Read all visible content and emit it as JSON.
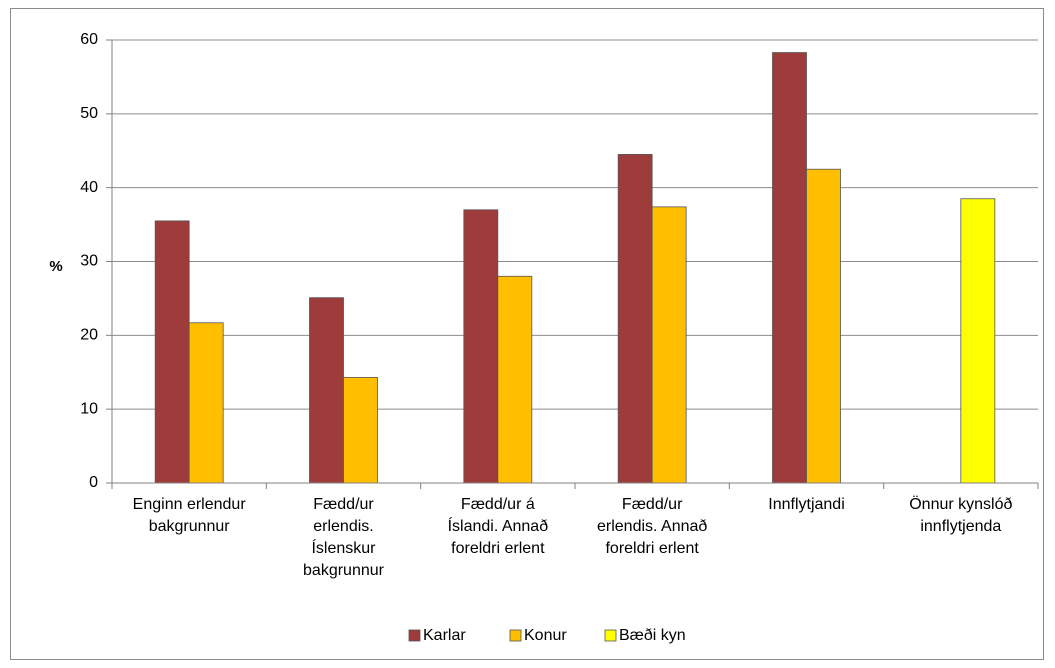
{
  "chart_data": {
    "type": "bar",
    "ylabel": "%",
    "ylim": [
      0,
      60
    ],
    "yticks": [
      "0",
      "10",
      "20",
      "30",
      "40",
      "50",
      "60"
    ],
    "grid": true,
    "legend_position": "bottom",
    "categories": [
      [
        "Enginn erlendur",
        "bakgrunnur"
      ],
      [
        "Fædd/ur",
        "erlendis.",
        "Íslenskur",
        "bakgrunnur"
      ],
      [
        "Fædd/ur á",
        "Íslandi. Annað",
        "foreldri erlent"
      ],
      [
        "Fædd/ur",
        "erlendis. Annað",
        "foreldri erlent"
      ],
      [
        "Innflytjandi"
      ],
      [
        "Önnur kynslóð",
        "innflytjenda"
      ]
    ],
    "series": [
      {
        "name": "Karlar",
        "color": "#9E3B3B",
        "values": [
          35.5,
          25.1,
          37.0,
          44.5,
          58.3,
          null
        ]
      },
      {
        "name": "Konur",
        "color": "#FFBF00",
        "values": [
          21.7,
          14.3,
          28.0,
          37.4,
          42.5,
          null
        ]
      },
      {
        "name": "Bæði kyn",
        "color": "#FFFF00",
        "values": [
          null,
          null,
          null,
          null,
          null,
          38.5
        ]
      }
    ]
  }
}
